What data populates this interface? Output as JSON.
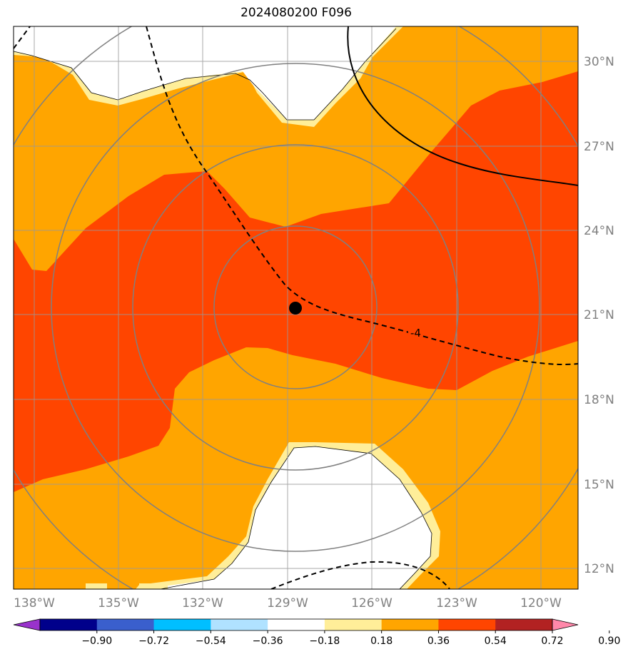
{
  "title": "2024080200 F096",
  "colors": {
    "band_018_036": "#ffee99",
    "band_036_054": "#ffa500",
    "band_054_072": "#ff4500",
    "neutral": "#ffffff",
    "range_rings": "#808080",
    "gridlines": "#999999",
    "contour": "#000000",
    "center_marker": "#000000"
  },
  "map": {
    "lat_labels": [
      "30°N",
      "27°N",
      "24°N",
      "21°N",
      "18°N",
      "15°N",
      "12°N"
    ],
    "lon_labels": [
      "138°W",
      "135°W",
      "132°W",
      "129°W",
      "126°W",
      "123°W",
      "120°W"
    ],
    "contour_label": "-4",
    "center_marker": "storm-center-dot"
  },
  "colorbar": {
    "colors": [
      "#9932cc",
      "#00008b",
      "#3a5fcd",
      "#00bfff",
      "#b0e2ff",
      "#ffffff",
      "#ffee99",
      "#ffa500",
      "#ff4500",
      "#b22222",
      "#ff88aa"
    ],
    "tick_labels": [
      "−0.90",
      "−0.72",
      "−0.54",
      "−0.36",
      "−0.18",
      "0.18",
      "0.36",
      "0.54",
      "0.72",
      "0.90"
    ]
  }
}
